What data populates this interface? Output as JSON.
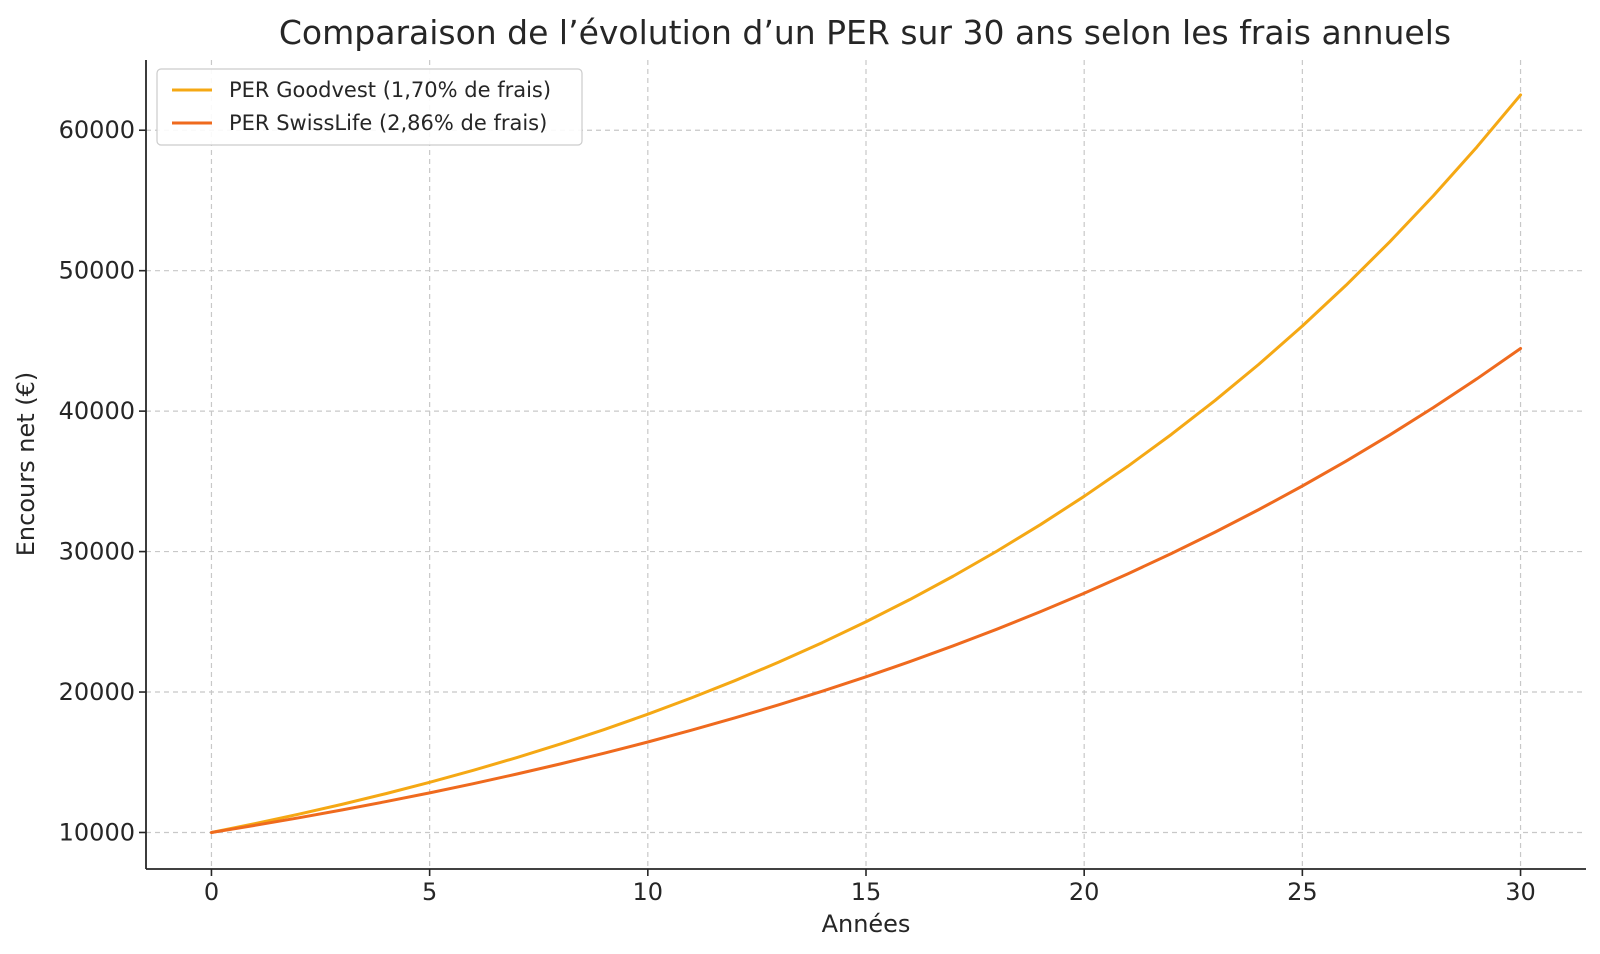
{
  "chart_data": {
    "type": "line",
    "title": "Comparaison de l’évolution d’un PER sur 30 ans selon les frais annuels",
    "xlabel": "Années",
    "ylabel": "Encours net (€)",
    "xlim": [
      -1.5,
      31.5
    ],
    "ylim": [
      7400,
      65000
    ],
    "xticks": [
      0,
      5,
      10,
      15,
      20,
      25,
      30
    ],
    "yticks": [
      10000,
      20000,
      30000,
      40000,
      50000,
      60000
    ],
    "grid": true,
    "legend_position": "top-left",
    "x": [
      0,
      1,
      2,
      3,
      4,
      5,
      6,
      7,
      8,
      9,
      10,
      11,
      12,
      13,
      14,
      15,
      16,
      17,
      18,
      19,
      20,
      21,
      22,
      23,
      24,
      25,
      26,
      27,
      28,
      29,
      30
    ],
    "series": [
      {
        "name": "PER Goodvest (1,70% de frais)",
        "color": "#f5a814",
        "values": [
          10000,
          10630,
          11300,
          12011,
          12768,
          13572,
          14427,
          15336,
          16302,
          17330,
          18421,
          19582,
          20815,
          22127,
          23521,
          25003,
          26578,
          28252,
          30032,
          31924,
          33935,
          36073,
          38346,
          40761,
          43329,
          46059,
          48961,
          52045,
          55324,
          58809,
          62514
        ]
      },
      {
        "name": "PER SwissLife (2,86% de frais)",
        "color": "#ef6a1e",
        "values": [
          10000,
          10509,
          11045,
          11608,
          12200,
          12822,
          13476,
          14163,
          14885,
          15644,
          16442,
          17280,
          18161,
          19087,
          20061,
          21083,
          22159,
          23289,
          24476,
          25724,
          27036,
          28415,
          29864,
          31387,
          32987,
          34669,
          36437,
          38296,
          40249,
          42301,
          44458
        ]
      }
    ]
  }
}
